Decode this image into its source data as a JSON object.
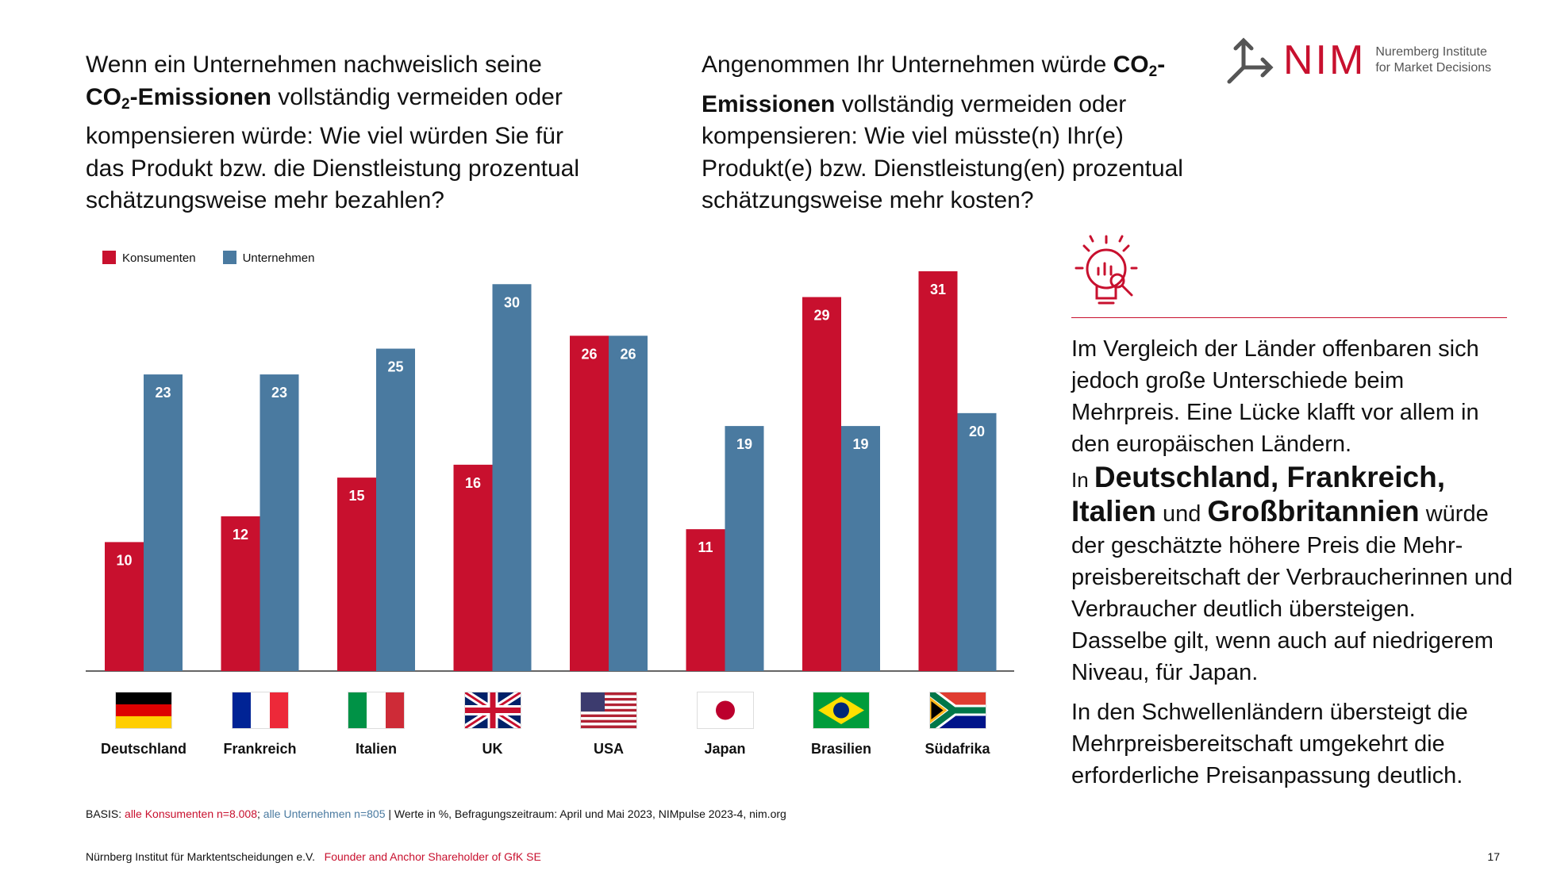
{
  "logo": {
    "mark": "NIM",
    "line1": "Nuremberg Institute",
    "line2": "for Market Decisions"
  },
  "question_left": {
    "p1": "Wenn ein Unternehmen nachweislich seine ",
    "co": "CO",
    "sub": "2",
    "bold": "-Emissionen",
    "p2": " vollständig vermeiden oder kompensieren würde: Wie viel würden Sie für das Produkt bzw. die Dienstleistung prozentual schätzungsweise mehr bezahlen?"
  },
  "question_right": {
    "p1": "Angenommen Ihr Unternehmen würde ",
    "co": "CO",
    "sub": "2",
    "bold": "-Emissionen",
    "p2": " vollständig vermeiden oder kompensieren: Wie viel müsste(n) Ihr(e) Produkt(e) bzw. Dienstleistung(en) prozentual schätzungsweise mehr kosten?"
  },
  "chart_data": {
    "type": "bar",
    "categories": [
      "Deutschland",
      "Frankreich",
      "Italien",
      "UK",
      "USA",
      "Japan",
      "Brasilien",
      "Südafrika"
    ],
    "series": [
      {
        "name": "Konsumenten",
        "color": "#c8102e",
        "values": [
          10,
          12,
          15,
          16,
          26,
          11,
          29,
          31
        ]
      },
      {
        "name": "Unternehmen",
        "color": "#4a7aa0",
        "values": [
          23,
          23,
          25,
          30,
          26,
          19,
          19,
          20
        ]
      }
    ],
    "legend": "top-left",
    "grid": false,
    "ylim": [
      0,
      31
    ]
  },
  "flags": [
    "germany-flag",
    "france-flag",
    "italy-flag",
    "uk-flag",
    "usa-flag",
    "japan-flag",
    "brazil-flag",
    "south-africa-flag"
  ],
  "right_panel": {
    "icon": "lightbulb-analytics-icon",
    "p1": "Im Vergleich der Länder offenbaren sich jedoch große Unterschiede beim Mehrpreis. Eine Lücke klafft vor allem in den europäischen Ländern.",
    "in": "In ",
    "b1": "Deutschland, Frankreich, Italien",
    "und": " und ",
    "b2": "Großbritannien",
    "rest": " würde der geschätzte höhere Preis die Mehr­preisbereitschaft der Verbraucherinnen und Verbraucher deutlich übersteigen. Dasselbe gilt, wenn auch auf niedrigerem Niveau, für Japan.",
    "p3": "In den Schwellenländern übersteigt die Mehrpreisbereitschaft umgekehrt die erforderliche Preisanpassung deutlich."
  },
  "basis": {
    "label": "BASIS: ",
    "cons": "alle Konsumenten n=8.008",
    "sep": "; ",
    "comp": "alle Unternehmen n=805",
    "rest": " | Werte in %, Befragungszeitraum: April und Mai 2023, NIMpulse 2023-4, nim.org"
  },
  "footer": {
    "org": "Nürnberg Institut für Marktentscheidungen e.V.",
    "tag": "Founder and Anchor Shareholder of GfK SE",
    "page": "17"
  }
}
